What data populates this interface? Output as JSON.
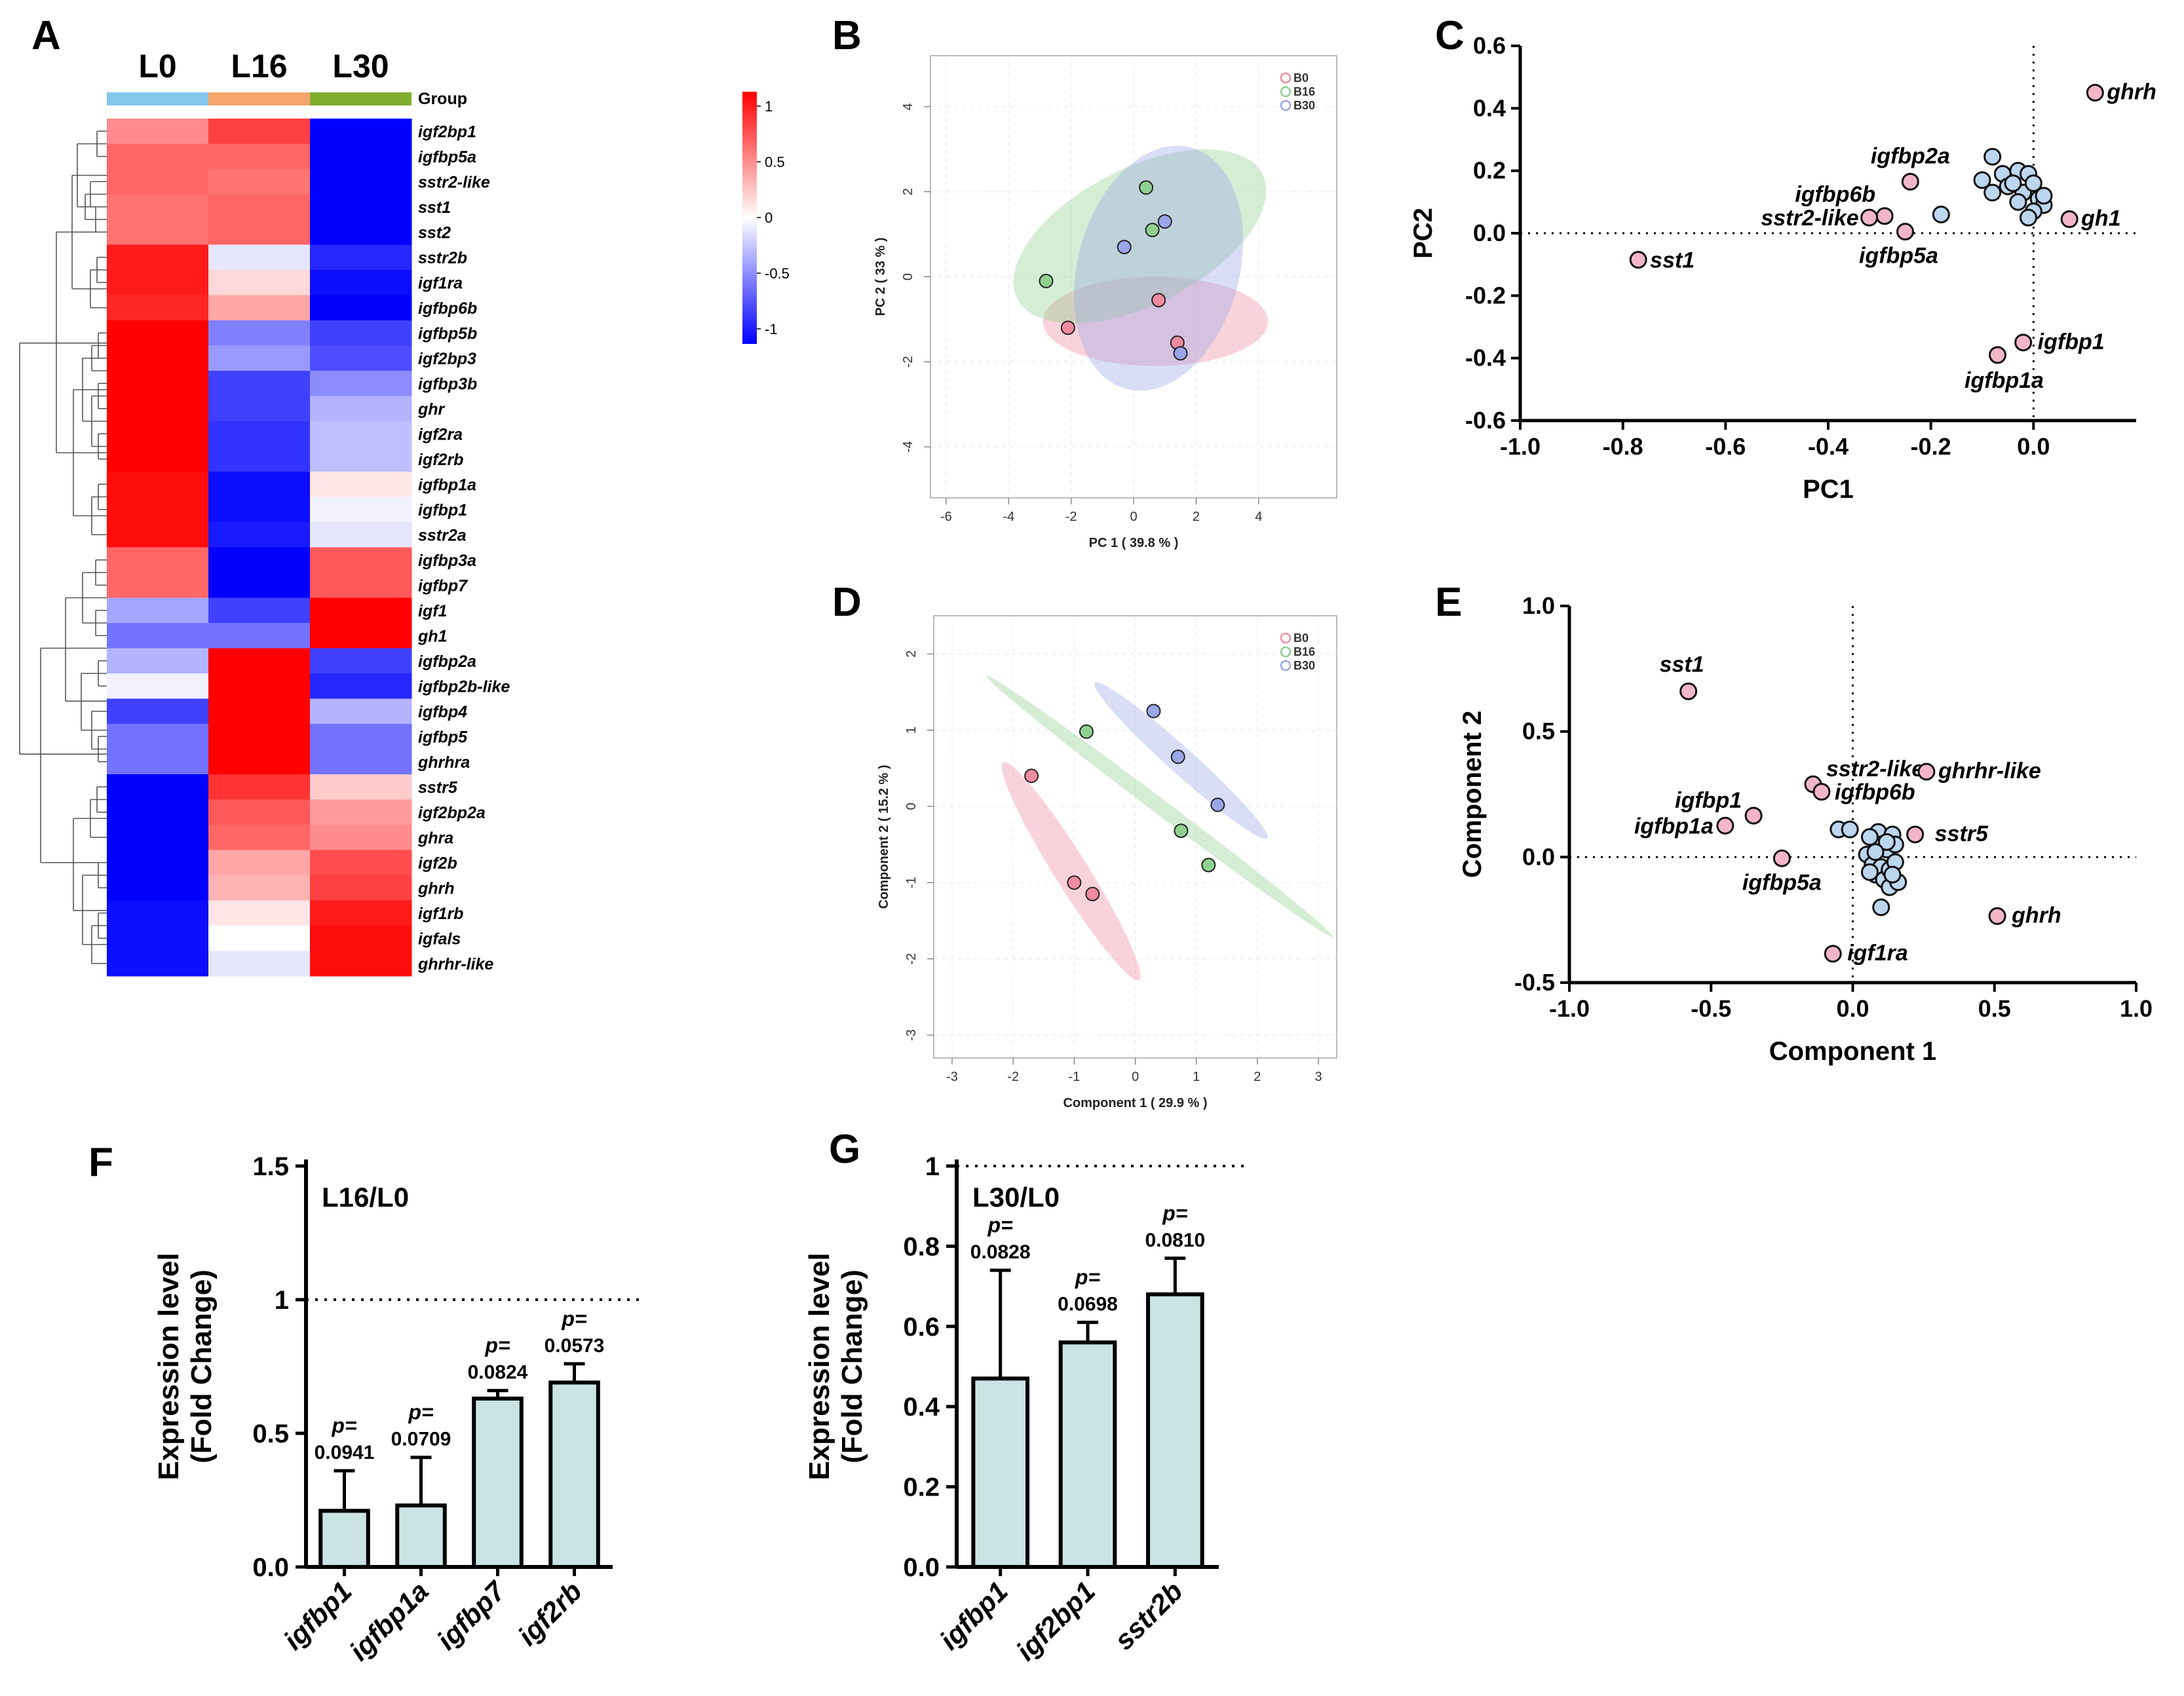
{
  "panel_labels": [
    "A",
    "B",
    "C",
    "D",
    "E",
    "F",
    "G"
  ],
  "colors": {
    "high": "#ff0000",
    "mid": "#ffffff",
    "low": "#0000ff",
    "g0": "#f08ca0",
    "g16": "#8fd08f",
    "g30": "#9aa6e8",
    "pink_dot": "#f3b6c9",
    "blue_dot": "#bcd6f0",
    "bar": "#c9e4e2",
    "group_L0": "#84c6ec",
    "group_L16": "#f3a56b",
    "group_L30": "#7fae2e"
  },
  "chart_data": [
    {
      "id": "A",
      "type": "heatmap",
      "columns": [
        "L0",
        "L16",
        "L30"
      ],
      "group_label": "Group",
      "legend_ticks": [
        "1",
        "0.5",
        "0",
        "-0.5",
        "-1"
      ],
      "rows": [
        {
          "gene": "igf2bp1",
          "values": [
            0.45,
            0.75,
            -1.0
          ]
        },
        {
          "gene": "igfbp5a",
          "values": [
            0.6,
            0.6,
            -1.0
          ]
        },
        {
          "gene": "sstr2-like",
          "values": [
            0.6,
            0.55,
            -1.0
          ]
        },
        {
          "gene": "sst1",
          "values": [
            0.55,
            0.6,
            -1.0
          ]
        },
        {
          "gene": "sst2",
          "values": [
            0.55,
            0.6,
            -1.0
          ]
        },
        {
          "gene": "sstr2b",
          "values": [
            0.9,
            -0.1,
            -0.85
          ]
        },
        {
          "gene": "igf1ra",
          "values": [
            0.9,
            0.15,
            -0.95
          ]
        },
        {
          "gene": "igfbp6b",
          "values": [
            0.85,
            0.35,
            -1.0
          ]
        },
        {
          "gene": "igfbp5b",
          "values": [
            1.0,
            -0.5,
            -0.75
          ]
        },
        {
          "gene": "igf2bp3",
          "values": [
            1.0,
            -0.4,
            -0.7
          ]
        },
        {
          "gene": "igfbp3b",
          "values": [
            1.0,
            -0.75,
            -0.45
          ]
        },
        {
          "gene": "ghr",
          "values": [
            1.0,
            -0.75,
            -0.3
          ]
        },
        {
          "gene": "igf2ra",
          "values": [
            1.0,
            -0.8,
            -0.25
          ]
        },
        {
          "gene": "igf2rb",
          "values": [
            1.0,
            -0.8,
            -0.25
          ]
        },
        {
          "gene": "igfbp1a",
          "values": [
            0.95,
            -0.95,
            0.1
          ]
        },
        {
          "gene": "igfbp1",
          "values": [
            0.95,
            -0.95,
            -0.05
          ]
        },
        {
          "gene": "sstr2a",
          "values": [
            0.95,
            -0.9,
            -0.1
          ]
        },
        {
          "gene": "igfbp3a",
          "values": [
            0.6,
            -1.0,
            0.65
          ]
        },
        {
          "gene": "igfbp7",
          "values": [
            0.6,
            -1.0,
            0.65
          ]
        },
        {
          "gene": "igf1",
          "values": [
            -0.35,
            -0.75,
            1.0
          ]
        },
        {
          "gene": "gh1",
          "values": [
            -0.55,
            -0.55,
            1.0
          ]
        },
        {
          "gene": "igfbp2a",
          "values": [
            -0.3,
            1.0,
            -0.75
          ]
        },
        {
          "gene": "igfbp2b-like",
          "values": [
            -0.05,
            1.0,
            -0.85
          ]
        },
        {
          "gene": "igfbp4",
          "values": [
            -0.75,
            1.0,
            -0.3
          ]
        },
        {
          "gene": "igfbp5",
          "values": [
            -0.55,
            1.0,
            -0.55
          ]
        },
        {
          "gene": "ghrhra",
          "values": [
            -0.55,
            1.0,
            -0.55
          ]
        },
        {
          "gene": "sstr5",
          "values": [
            -1.0,
            0.8,
            0.2
          ]
        },
        {
          "gene": "igf2bp2a",
          "values": [
            -1.0,
            0.65,
            0.4
          ]
        },
        {
          "gene": "ghra",
          "values": [
            -1.0,
            0.6,
            0.45
          ]
        },
        {
          "gene": "igf2b",
          "values": [
            -1.0,
            0.35,
            0.7
          ]
        },
        {
          "gene": "ghrh",
          "values": [
            -1.0,
            0.3,
            0.75
          ]
        },
        {
          "gene": "igf1rb",
          "values": [
            -0.95,
            0.1,
            0.9
          ]
        },
        {
          "gene": "igfals",
          "values": [
            -0.95,
            0.0,
            0.95
          ]
        },
        {
          "gene": "ghrhr-like",
          "values": [
            -0.95,
            -0.1,
            0.95
          ]
        }
      ]
    },
    {
      "id": "B",
      "type": "scatter",
      "xlabel": "PC 1 ( 39.8 % )",
      "ylabel": "PC 2 ( 33 % )",
      "xlim": [
        -6.5,
        6.5
      ],
      "ylim": [
        -5.2,
        5.2
      ],
      "xticks": [
        -6,
        -4,
        -2,
        0,
        2,
        4
      ],
      "yticks": [
        -4,
        -2,
        0,
        2,
        4
      ],
      "legend": [
        "B0",
        "B16",
        "B30"
      ],
      "series": [
        {
          "name": "B0",
          "points": [
            [
              -2.1,
              -1.2
            ],
            [
              0.8,
              -0.55
            ],
            [
              1.4,
              -1.55
            ]
          ],
          "ellipse": {
            "cx": 0.7,
            "cy": -1.05,
            "rx": 3.6,
            "ry": 1.05,
            "angle": 0
          }
        },
        {
          "name": "B16",
          "points": [
            [
              -2.8,
              -0.1
            ],
            [
              0.4,
              2.1
            ],
            [
              0.6,
              1.1
            ]
          ],
          "ellipse": {
            "cx": 0.2,
            "cy": 0.95,
            "rx": 4.4,
            "ry": 1.6,
            "angle": -27
          }
        },
        {
          "name": "B30",
          "points": [
            [
              -0.3,
              0.7
            ],
            [
              1.0,
              1.3
            ],
            [
              1.5,
              -1.8
            ]
          ],
          "ellipse": {
            "cx": 0.8,
            "cy": 0.2,
            "rx": 4.0,
            "ry": 1.9,
            "angle": -75
          }
        }
      ]
    },
    {
      "id": "C",
      "type": "scatter",
      "xlabel": "PC1",
      "ylabel": "PC2",
      "xlim": [
        -1.0,
        0.2
      ],
      "ylim": [
        -0.6,
        0.6
      ],
      "xticks": [
        -1.0,
        -0.8,
        -0.6,
        -0.4,
        -0.2,
        0.0
      ],
      "yticks": [
        -0.6,
        -0.4,
        -0.2,
        0.0,
        0.2,
        0.4,
        0.6
      ],
      "labeled": [
        {
          "label": "ghrh",
          "x": 0.12,
          "y": 0.45
        },
        {
          "label": "igfbp2a",
          "x": -0.24,
          "y": 0.165
        },
        {
          "label": "igfbp6b",
          "x": -0.29,
          "y": 0.055
        },
        {
          "label": "sstr2-like",
          "x": -0.32,
          "y": 0.05
        },
        {
          "label": "igfbp5a",
          "x": -0.25,
          "y": 0.005
        },
        {
          "label": "gh1",
          "x": 0.07,
          "y": 0.045
        },
        {
          "label": "sst1",
          "x": -0.77,
          "y": -0.085
        },
        {
          "label": "igfbp1",
          "x": -0.02,
          "y": -0.35
        },
        {
          "label": "igfbp1a",
          "x": -0.07,
          "y": -0.39
        }
      ],
      "unlabeled": [
        [
          -0.08,
          0.245
        ],
        [
          -0.1,
          0.17
        ],
        [
          -0.08,
          0.13
        ],
        [
          -0.06,
          0.19
        ],
        [
          -0.03,
          0.2
        ],
        [
          -0.01,
          0.19
        ],
        [
          -0.02,
          0.13
        ],
        [
          0.0,
          0.16
        ],
        [
          0.01,
          0.11
        ],
        [
          0.02,
          0.09
        ],
        [
          -0.05,
          0.15
        ],
        [
          -0.03,
          0.1
        ],
        [
          0.0,
          0.07
        ],
        [
          -0.01,
          0.05
        ],
        [
          0.02,
          0.12
        ],
        [
          -0.04,
          0.16
        ],
        [
          -0.18,
          0.06
        ]
      ]
    },
    {
      "id": "D",
      "type": "scatter",
      "xlabel": "Component 1 ( 29.9 % )",
      "ylabel": "Component 2 ( 15.2 % )",
      "xlim": [
        -3.3,
        3.3
      ],
      "ylim": [
        -3.3,
        2.5
      ],
      "xticks": [
        -3,
        -2,
        -1,
        0,
        1,
        2,
        3
      ],
      "yticks": [
        -3,
        -2,
        -1,
        0,
        1,
        2
      ],
      "legend": [
        "B0",
        "B16",
        "B30"
      ],
      "series": [
        {
          "name": "B0",
          "points": [
            [
              -1.7,
              0.4
            ],
            [
              -1.0,
              -1.0
            ],
            [
              -0.7,
              -1.15
            ]
          ],
          "ellipse": {
            "cx": -1.05,
            "cy": -0.85,
            "rx": 2.1,
            "ry": 0.22,
            "angle": 58
          }
        },
        {
          "name": "B16",
          "points": [
            [
              -0.8,
              0.98
            ],
            [
              0.75,
              -0.32
            ],
            [
              1.2,
              -0.77
            ]
          ],
          "ellipse": {
            "cx": 0.4,
            "cy": 0.0,
            "rx": 3.55,
            "ry": 0.1,
            "angle": 37
          }
        },
        {
          "name": "B30",
          "points": [
            [
              0.3,
              1.25
            ],
            [
              0.7,
              0.65
            ],
            [
              1.35,
              0.02
            ]
          ],
          "ellipse": {
            "cx": 0.75,
            "cy": 0.6,
            "rx": 1.9,
            "ry": 0.17,
            "angle": 42
          }
        }
      ]
    },
    {
      "id": "E",
      "type": "scatter",
      "xlabel": "Component 1",
      "ylabel": "Component 2",
      "xlim": [
        -1.0,
        1.0
      ],
      "ylim": [
        -0.5,
        1.0
      ],
      "xticks": [
        -1.0,
        -0.5,
        0.0,
        0.5,
        1.0
      ],
      "yticks": [
        -0.5,
        0.0,
        0.5,
        1.0
      ],
      "labeled": [
        {
          "label": "sst1",
          "x": -0.58,
          "y": 0.66
        },
        {
          "label": "sstr2-like",
          "x": -0.14,
          "y": 0.29
        },
        {
          "label": "igfbp6b",
          "x": -0.11,
          "y": 0.26
        },
        {
          "label": "ghrhr-like",
          "x": 0.26,
          "y": 0.34
        },
        {
          "label": "igfbp1",
          "x": -0.35,
          "y": 0.165
        },
        {
          "label": "igfbp1a",
          "x": -0.45,
          "y": 0.125
        },
        {
          "label": "sstr5",
          "x": 0.22,
          "y": 0.09
        },
        {
          "label": "igfbp5a",
          "x": -0.25,
          "y": -0.005
        },
        {
          "label": "ghrh",
          "x": 0.51,
          "y": -0.235
        },
        {
          "label": "igf1ra",
          "x": -0.07,
          "y": -0.385
        }
      ],
      "unlabeled": [
        [
          -0.05,
          0.11
        ],
        [
          -0.01,
          0.11
        ],
        [
          0.05,
          0.01
        ],
        [
          0.07,
          -0.03
        ],
        [
          0.08,
          -0.07
        ],
        [
          0.09,
          0.1
        ],
        [
          0.1,
          0.05
        ],
        [
          0.1,
          -0.04
        ],
        [
          0.11,
          -0.09
        ],
        [
          0.12,
          0.03
        ],
        [
          0.13,
          -0.05
        ],
        [
          0.13,
          -0.12
        ],
        [
          0.14,
          0.09
        ],
        [
          0.15,
          -0.02
        ],
        [
          0.15,
          0.05
        ],
        [
          0.16,
          -0.1
        ],
        [
          0.12,
          0.06
        ],
        [
          0.1,
          -0.2
        ],
        [
          0.06,
          -0.06
        ],
        [
          0.08,
          0.02
        ],
        [
          0.14,
          -0.07
        ],
        [
          0.06,
          0.08
        ]
      ]
    },
    {
      "id": "F",
      "type": "bar",
      "title": "L16/L0",
      "ylabel": [
        "Expression level",
        "(Fold Change)"
      ],
      "ylim": [
        0,
        1.5
      ],
      "yticks": [
        "0.0",
        "0.5",
        "1",
        "1.5"
      ],
      "reference": 1,
      "categories": [
        "igfbp1",
        "igfbp1a",
        "igfbp7",
        "igf2rb"
      ],
      "values": [
        0.21,
        0.23,
        0.63,
        0.69
      ],
      "errors": [
        0.15,
        0.18,
        0.03,
        0.07
      ],
      "p_prefix": "p=",
      "p_values": [
        "0.0941",
        "0.0709",
        "0.0824",
        "0.0573"
      ]
    },
    {
      "id": "G",
      "type": "bar",
      "title": "L30/L0",
      "ylabel": [
        "Expression level",
        "(Fold Change)"
      ],
      "ylim": [
        0,
        1.0
      ],
      "yticks": [
        "0.0",
        "0.2",
        "0.4",
        "0.6",
        "0.8",
        "1"
      ],
      "reference": 1,
      "categories": [
        "igfbp1",
        "igf2bp1",
        "sstr2b"
      ],
      "values": [
        0.47,
        0.56,
        0.68
      ],
      "errors": [
        0.27,
        0.05,
        0.09
      ],
      "p_prefix": "p=",
      "p_values": [
        "0.0828",
        "0.0698",
        "0.0810"
      ]
    }
  ]
}
